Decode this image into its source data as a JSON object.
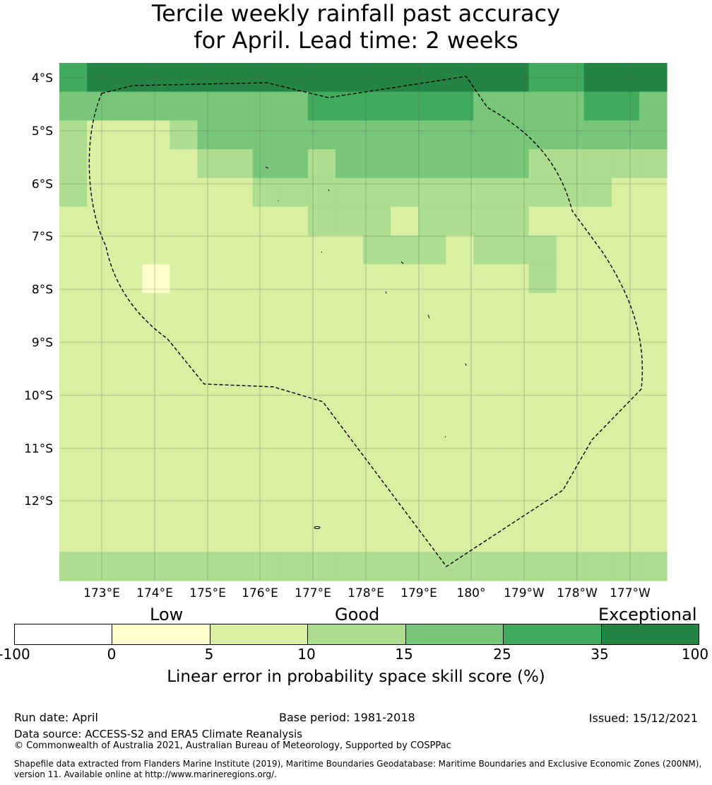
{
  "title_line1": "Tercile weekly rainfall past accuracy",
  "title_line2": "for April. Lead time: 2 weeks",
  "map": {
    "lat_labels": [
      "4°S",
      "5°S",
      "6°S",
      "7°S",
      "8°S",
      "9°S",
      "10°S",
      "11°S",
      "12°S"
    ],
    "lon_labels": [
      "173°E",
      "174°E",
      "175°E",
      "176°E",
      "177°E",
      "178°E",
      "179°E",
      "180°",
      "179°W",
      "178°W",
      "177°W"
    ],
    "grid": [
      "5666666666666666655666",
      "4444444445555554444554",
      "3222344444444444444444",
      "3222233443444444433333",
      "3222222333333333333322",
      "2222222223332333322222",
      "2222222222233323332222",
      "2221222222222222232222",
      "2222222222222222222222",
      "2222222222222222222222",
      "2222222222222222222222",
      "2222222222222222222222",
      "2222222222222222222222",
      "2222222222222222222222",
      "2222222222222222222222",
      "2222222222222222222222",
      "2222222222222222222222",
      "3333333333333333333333"
    ]
  },
  "colorbar": {
    "category_labels": [
      "Low",
      "Good",
      "Exceptional"
    ],
    "ticks": [
      "-100",
      "0",
      "5",
      "10",
      "15",
      "25",
      "35",
      "100"
    ],
    "colors": [
      "#ffffff",
      "#ffffcc",
      "#d9f0a3",
      "#addd8e",
      "#78c679",
      "#41ab5d",
      "#238443"
    ],
    "label": "Linear error in probability space skill score (%)"
  },
  "footer": {
    "run_date": "Run date: April",
    "base_period": "Base period: 1981-2018",
    "issued": "Issued: 15/12/2021",
    "data_source": "Data source: ACCESS-S2 and ERA5 Climate Reanalysis",
    "copyright": "© Commonwealth of Australia 2021, Australian Bureau of Meteorology, Supported by COSPPac",
    "shapefile_line1": "Shapefile data extracted from Flanders Marine Institute (2019), Maritime Boundaries Geodatabase: Maritime Boundaries and Exclusive Economic Zones (200NM),",
    "shapefile_line2": "version 11. Available online at http://www.marineregions.org/."
  }
}
